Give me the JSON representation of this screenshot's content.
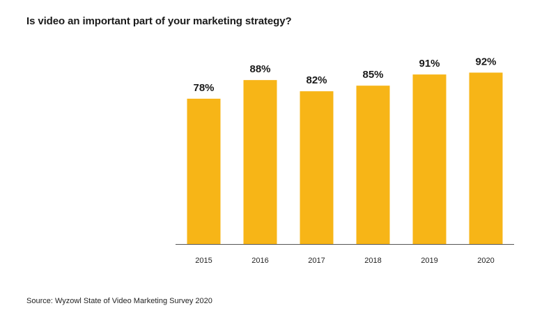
{
  "title": "Is video an important part of your marketing strategy?",
  "source": "Source: Wyzowl State of Video Marketing Survey 2020",
  "colors": {
    "bar": "#F7B517",
    "axis": "#555555",
    "text": "#1a1a1a"
  },
  "chart_data": {
    "type": "bar",
    "categories": [
      "2015",
      "2016",
      "2017",
      "2018",
      "2019",
      "2020"
    ],
    "values": [
      78,
      88,
      82,
      85,
      91,
      92
    ],
    "value_labels": [
      "78%",
      "88%",
      "82%",
      "85%",
      "91%",
      "92%"
    ],
    "xlabel": "",
    "ylabel": "",
    "ylim": [
      0,
      100
    ],
    "grid": false,
    "legend": "none"
  }
}
